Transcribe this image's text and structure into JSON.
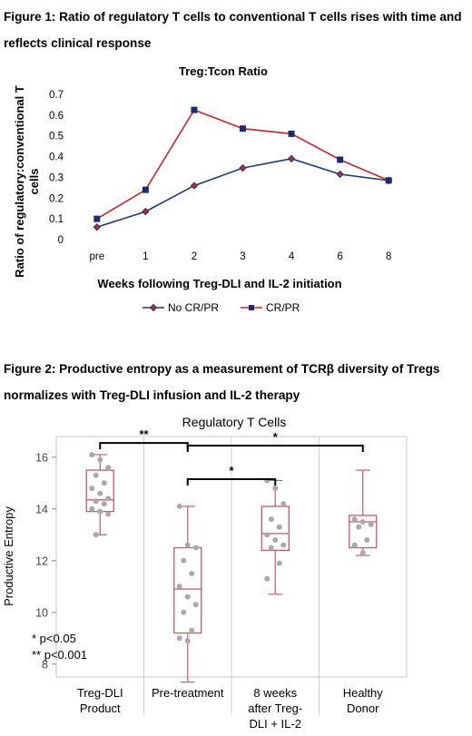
{
  "figure1": {
    "caption_line1": "Figure 1: Ratio of regulatory T cells to conventional T cells rises with time and",
    "caption_line2": "reflects clinical response",
    "chart_data": {
      "type": "line",
      "title": "Treg:Tcon Ratio",
      "xlabel": "Weeks following Treg-DLI and IL-2 initiation",
      "ylabel_line1": "Ratio of regulatory:conventional T",
      "ylabel_line2": "cells",
      "categories": [
        "pre",
        "1",
        "2",
        "3",
        "4",
        "6",
        "8"
      ],
      "ylim": [
        0,
        0.7
      ],
      "yticks": [
        "0",
        "0.1",
        "0.2",
        "0.3",
        "0.4",
        "0.5",
        "0.6",
        "0.7"
      ],
      "series": [
        {
          "name": "No CR/PR",
          "color": "#1f3a6e",
          "marker": "diamond",
          "values": [
            0.06,
            0.135,
            0.26,
            0.345,
            0.39,
            0.315,
            0.285
          ]
        },
        {
          "name": "CR/PR",
          "color": "#c0282d",
          "marker": "square",
          "values": [
            0.1,
            0.24,
            0.625,
            0.535,
            0.51,
            0.385,
            0.285
          ]
        }
      ],
      "legend": "bottom"
    }
  },
  "figure2": {
    "caption_line1": "Figure 2:  Productive entropy as a measurement of TCRβ diversity of Tregs",
    "caption_line2": "normalizes with Treg-DLI infusion and IL-2 therapy",
    "chart_data": {
      "type": "box",
      "title": "Regulatory T Cells",
      "ylabel": "Productive Entropy",
      "ylim": [
        7.5,
        16.8
      ],
      "yticks": [
        "8",
        "10",
        "12",
        "14",
        "16"
      ],
      "box_color": "#c8596a",
      "point_color": "#a9a9a9",
      "groups": [
        {
          "label_lines": [
            "Treg-DLI",
            "Product"
          ],
          "min": 13.0,
          "q1": 13.9,
          "median": 14.35,
          "q3": 15.5,
          "max": 16.1,
          "points": [
            16.1,
            15.9,
            15.6,
            15.3,
            15.0,
            14.8,
            14.6,
            14.4,
            14.3,
            14.2,
            14.0,
            13.9,
            13.8,
            13.0
          ]
        },
        {
          "label_lines": [
            "Pre-treatment"
          ],
          "min": 7.3,
          "q1": 9.2,
          "median": 10.9,
          "q3": 12.5,
          "max": 14.1,
          "points": [
            14.1,
            12.6,
            12.5,
            12.0,
            11.5,
            11.0,
            10.6,
            10.3,
            10.0,
            9.3,
            9.0,
            8.9
          ]
        },
        {
          "label_lines": [
            "8 weeks",
            "after Treg-",
            "DLI + IL-2"
          ],
          "min": 10.7,
          "q1": 12.4,
          "median": 13.05,
          "q3": 14.1,
          "max": 15.1,
          "points": [
            15.1,
            14.8,
            14.2,
            13.6,
            13.3,
            13.0,
            12.8,
            12.6,
            12.5,
            11.9,
            11.3
          ]
        },
        {
          "label_lines": [
            "Healthy",
            "Donor"
          ],
          "min": 12.2,
          "q1": 12.5,
          "median": 13.5,
          "q3": 13.75,
          "max": 15.5,
          "points": [
            13.6,
            13.5,
            13.4,
            13.3,
            12.8,
            12.6,
            12.3
          ]
        }
      ],
      "brackets": [
        {
          "from": 0,
          "to": 1,
          "label": "**"
        },
        {
          "from": 1,
          "to": 3,
          "label": "*"
        },
        {
          "from": 1,
          "to": 2,
          "label": "*"
        }
      ],
      "notes": [
        "* p<0.05",
        "** p<0.001"
      ]
    }
  }
}
